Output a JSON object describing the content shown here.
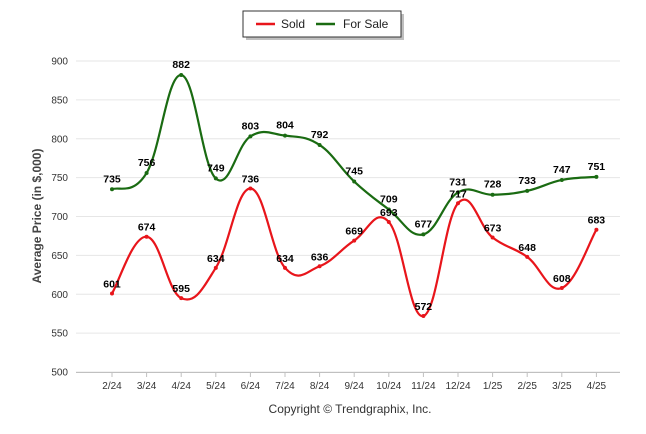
{
  "chart_data": {
    "type": "line",
    "title": "",
    "xlabel": "",
    "ylabel": "Average Price (in $,000)",
    "ylim": [
      500,
      900
    ],
    "yticks": [
      500,
      550,
      600,
      650,
      700,
      750,
      800,
      850,
      900
    ],
    "grid": true,
    "legend_placement": "top-center",
    "categories": [
      "2/24",
      "3/24",
      "4/24",
      "5/24",
      "6/24",
      "7/24",
      "8/24",
      "9/24",
      "10/24",
      "11/24",
      "12/24",
      "1/25",
      "2/25",
      "3/25",
      "4/25"
    ],
    "series": [
      {
        "name": "Sold",
        "color": "#e8151b",
        "values": [
          601,
          674,
          595,
          634,
          736,
          634,
          636,
          669,
          693,
          572,
          717,
          673,
          648,
          608,
          683
        ]
      },
      {
        "name": "For Sale",
        "color": "#1a6b12",
        "values": [
          735,
          756,
          882,
          749,
          803,
          804,
          792,
          745,
          709,
          677,
          731,
          728,
          733,
          747,
          751
        ]
      }
    ]
  },
  "footer": {
    "copyright": "Copyright © Trendgraphix, Inc."
  }
}
